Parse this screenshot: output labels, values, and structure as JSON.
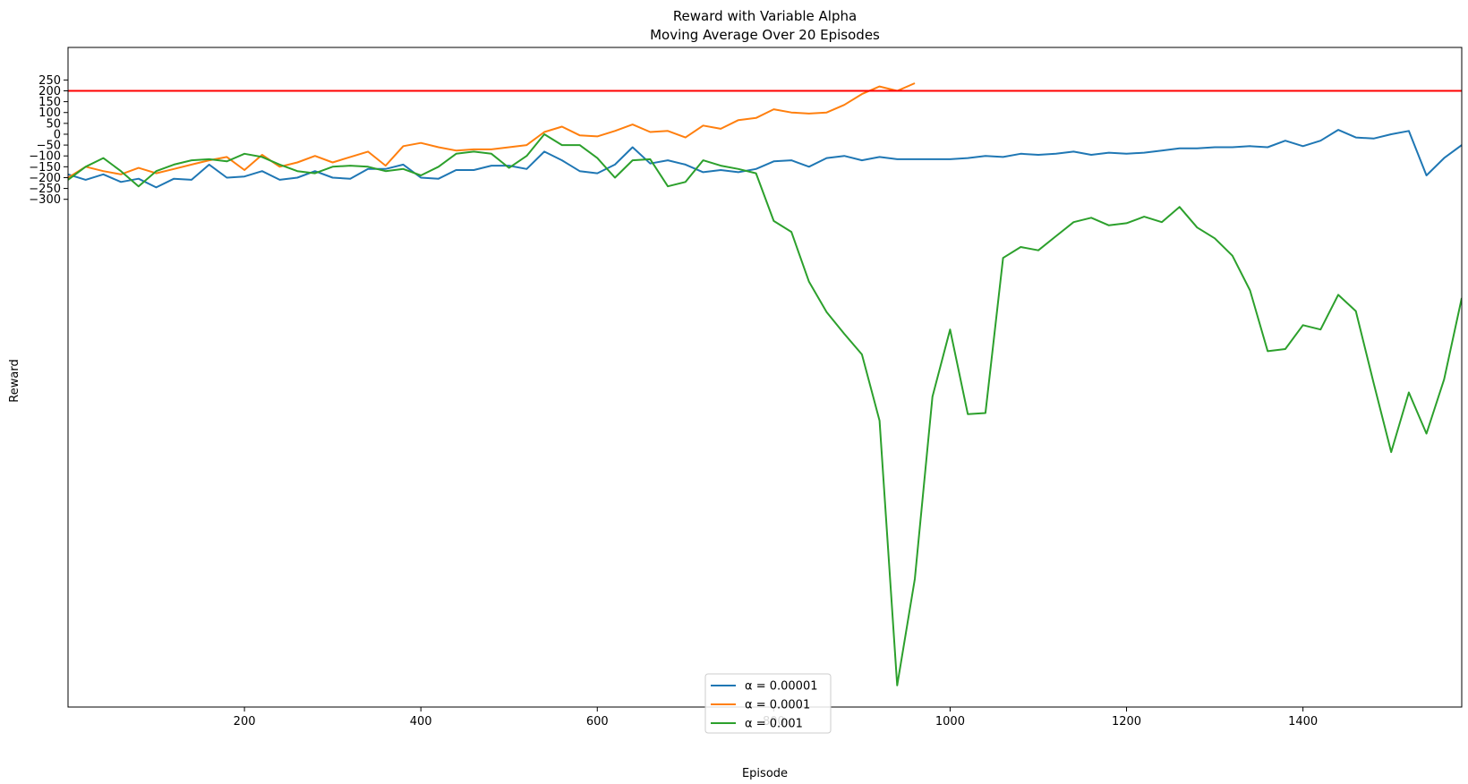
{
  "chart_data": {
    "type": "line",
    "title": [
      "Reward with Variable Alpha",
      "Moving Average Over 20 Episodes"
    ],
    "xlabel": "Episode",
    "ylabel": "Reward",
    "xlim": [
      0,
      1580
    ],
    "ylim": [
      -2640,
      400
    ],
    "xticks": [
      200,
      400,
      600,
      800,
      1000,
      1200,
      1400
    ],
    "yticks": [
      250,
      200,
      150,
      100,
      50,
      0,
      -50,
      -100,
      -150,
      -200,
      -250,
      -300
    ],
    "grid": false,
    "legend_position": "lower-center",
    "reference_line": {
      "y": 200,
      "color": "#ff0000"
    },
    "series": [
      {
        "name": "α = 0.00001",
        "color": "#1f77b4",
        "x": [
          0,
          20,
          40,
          60,
          80,
          100,
          120,
          140,
          160,
          180,
          200,
          220,
          240,
          260,
          280,
          300,
          320,
          340,
          360,
          380,
          400,
          420,
          440,
          460,
          480,
          500,
          520,
          540,
          560,
          580,
          600,
          620,
          640,
          660,
          680,
          700,
          720,
          740,
          760,
          780,
          800,
          820,
          840,
          860,
          880,
          900,
          920,
          940,
          960,
          980,
          1000,
          1020,
          1040,
          1060,
          1080,
          1100,
          1120,
          1140,
          1160,
          1180,
          1200,
          1220,
          1240,
          1260,
          1280,
          1300,
          1320,
          1340,
          1360,
          1380,
          1400,
          1420,
          1440,
          1460,
          1480,
          1500,
          1520,
          1540,
          1560,
          1580
        ],
        "y": [
          -185,
          -210,
          -185,
          -220,
          -205,
          -245,
          -205,
          -210,
          -140,
          -200,
          -195,
          -170,
          -210,
          -200,
          -170,
          -200,
          -205,
          -160,
          -160,
          -140,
          -200,
          -205,
          -165,
          -165,
          -145,
          -145,
          -160,
          -80,
          -120,
          -170,
          -180,
          -140,
          -60,
          -135,
          -120,
          -140,
          -175,
          -165,
          -175,
          -160,
          -125,
          -120,
          -150,
          -110,
          -100,
          -120,
          -105,
          -115,
          -115,
          -115,
          -115,
          -110,
          -100,
          -105,
          -90,
          -95,
          -90,
          -80,
          -95,
          -85,
          -90,
          -85,
          -75,
          -65,
          -65,
          -60,
          -60,
          -55,
          -60,
          -30,
          -55,
          -30,
          20,
          -15,
          -20,
          0,
          15,
          -190,
          -110,
          -50
        ]
      },
      {
        "name": "α = 0.0001",
        "color": "#ff7f0e",
        "x": [
          0,
          20,
          40,
          60,
          80,
          100,
          120,
          140,
          160,
          180,
          200,
          220,
          240,
          260,
          280,
          300,
          320,
          340,
          360,
          380,
          400,
          420,
          440,
          460,
          480,
          500,
          520,
          540,
          560,
          580,
          600,
          620,
          640,
          660,
          680,
          700,
          720,
          740,
          760,
          780,
          800,
          820,
          840,
          860,
          880,
          900,
          920,
          940,
          960
        ],
        "y": [
          -200,
          -150,
          -170,
          -185,
          -155,
          -180,
          -160,
          -140,
          -120,
          -105,
          -165,
          -95,
          -150,
          -130,
          -100,
          -130,
          -105,
          -80,
          -145,
          -55,
          -40,
          -60,
          -75,
          -70,
          -70,
          -60,
          -50,
          10,
          35,
          -5,
          -10,
          15,
          45,
          10,
          15,
          -15,
          40,
          25,
          65,
          75,
          115,
          100,
          95,
          100,
          135,
          185,
          220,
          200,
          235
        ]
      },
      {
        "name": "α = 0.001",
        "color": "#2ca02c",
        "x": [
          0,
          20,
          40,
          60,
          80,
          100,
          120,
          140,
          160,
          180,
          200,
          220,
          240,
          260,
          280,
          300,
          320,
          340,
          360,
          380,
          400,
          420,
          440,
          460,
          480,
          500,
          520,
          540,
          560,
          580,
          600,
          620,
          640,
          660,
          680,
          700,
          720,
          740,
          760,
          780,
          800,
          820,
          840,
          860,
          880,
          900,
          920,
          940,
          960,
          980,
          1000,
          1020,
          1040,
          1060,
          1080,
          1100,
          1120,
          1140,
          1160,
          1180,
          1200,
          1220,
          1240,
          1260,
          1280,
          1300,
          1320,
          1340,
          1360,
          1380,
          1400,
          1420,
          1440,
          1460,
          1480,
          1500,
          1520,
          1540,
          1560,
          1580
        ],
        "y": [
          -210,
          -150,
          -110,
          -170,
          -240,
          -170,
          -140,
          -120,
          -115,
          -125,
          -90,
          -105,
          -140,
          -170,
          -180,
          -150,
          -145,
          -150,
          -170,
          -160,
          -190,
          -150,
          -90,
          -80,
          -90,
          -155,
          -100,
          0,
          -50,
          -50,
          -110,
          -200,
          -120,
          -115,
          -240,
          -220,
          -120,
          -145,
          -160,
          -180,
          -400,
          -450,
          -680,
          -820,
          -920,
          -1015,
          -1320,
          -2540,
          -2050,
          -1210,
          -900,
          -1290,
          -1285,
          -570,
          -520,
          -535,
          -470,
          -405,
          -385,
          -420,
          -410,
          -380,
          -405,
          -335,
          -430,
          -480,
          -560,
          -720,
          -1000,
          -990,
          -880,
          -900,
          -740,
          -815,
          -1145,
          -1465,
          -1190,
          -1380,
          -1130,
          -755
        ]
      }
    ]
  }
}
